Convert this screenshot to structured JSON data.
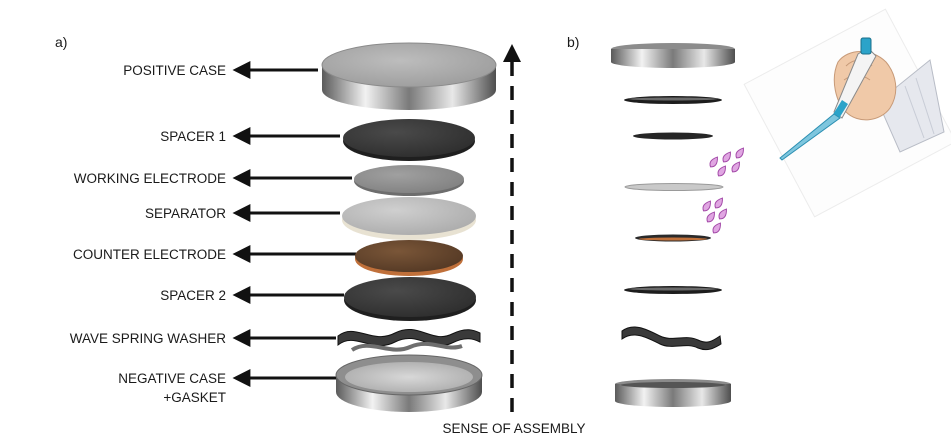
{
  "panels": {
    "a": "a)",
    "b": "b)"
  },
  "labels": {
    "positive_case": "POSITIVE CASE",
    "spacer_1": "SPACER 1",
    "working_electrode": "WORKING ELECTRODE",
    "separator": "SEPARATOR",
    "counter_electrode": "COUNTER ELECTRODE",
    "spacer_2": "SPACER 2",
    "wave_spring_washer": "WAVE SPRING WASHER",
    "negative_case_line1": "NEGATIVE CASE",
    "negative_case_line2": "+GASKET"
  },
  "assembly_caption": "SENSE OF ASSEMBLY",
  "colors": {
    "positive_case": "#a9a9a9",
    "spacer": "#3b3b3b",
    "working_electrode": "#8f8f8f",
    "separator": "#b8b8b8",
    "counter_electrode": "#6b4a30",
    "electrolyte_drop": "#d68fd8",
    "pipette_tip": "#2ba3c9"
  }
}
